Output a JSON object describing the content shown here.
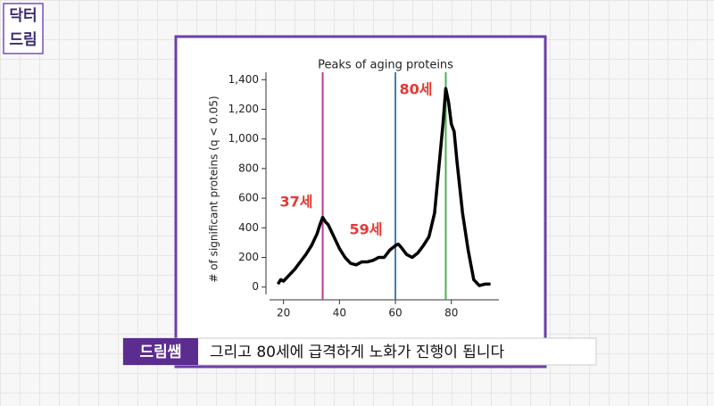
{
  "logo": {
    "line1": "닥터",
    "line2": "드림"
  },
  "chart_data": {
    "type": "line",
    "title": "Peaks of aging proteins",
    "ylabel": "# of significant proteins (q < 0.05)",
    "xlim": [
      15,
      97
    ],
    "ylim": [
      -50,
      1450
    ],
    "xticks": [
      20,
      40,
      60,
      80
    ],
    "yticks": [
      0,
      200,
      400,
      600,
      800,
      {
        "value": 1000,
        "label": "1,000"
      },
      {
        "value": 1200,
        "label": "1,200"
      },
      {
        "value": 1400,
        "label": "1,400"
      }
    ],
    "series": [
      {
        "color": "#000000",
        "x": [
          18,
          19,
          20,
          22,
          24,
          26,
          28,
          30,
          32,
          33,
          34,
          35,
          36,
          37,
          38,
          40,
          42,
          44,
          46,
          48,
          50,
          52,
          54,
          56,
          58,
          60,
          61,
          62,
          64,
          66,
          68,
          70,
          72,
          74,
          75,
          76,
          77,
          78,
          79,
          80,
          81,
          82,
          84,
          86,
          88,
          90,
          92,
          94
        ],
        "values": [
          20,
          50,
          40,
          80,
          120,
          170,
          220,
          280,
          360,
          420,
          470,
          440,
          420,
          380,
          340,
          260,
          200,
          160,
          150,
          170,
          170,
          180,
          200,
          200,
          250,
          280,
          290,
          270,
          220,
          200,
          230,
          280,
          340,
          500,
          700,
          900,
          1100,
          1340,
          1250,
          1100,
          1050,
          850,
          500,
          250,
          50,
          10,
          20,
          20
        ]
      }
    ],
    "vlines": [
      {
        "x": 34,
        "color": "#c0399a"
      },
      {
        "x": 60,
        "color": "#3a7fb5"
      },
      {
        "x": 78,
        "color": "#4caf50"
      }
    ],
    "annotations": [
      "37세",
      "59세",
      "80세"
    ]
  },
  "caption": {
    "speaker": "드림쌤",
    "text": "그리고 80세에 급격하게 노화가 진행이 됩니다"
  }
}
